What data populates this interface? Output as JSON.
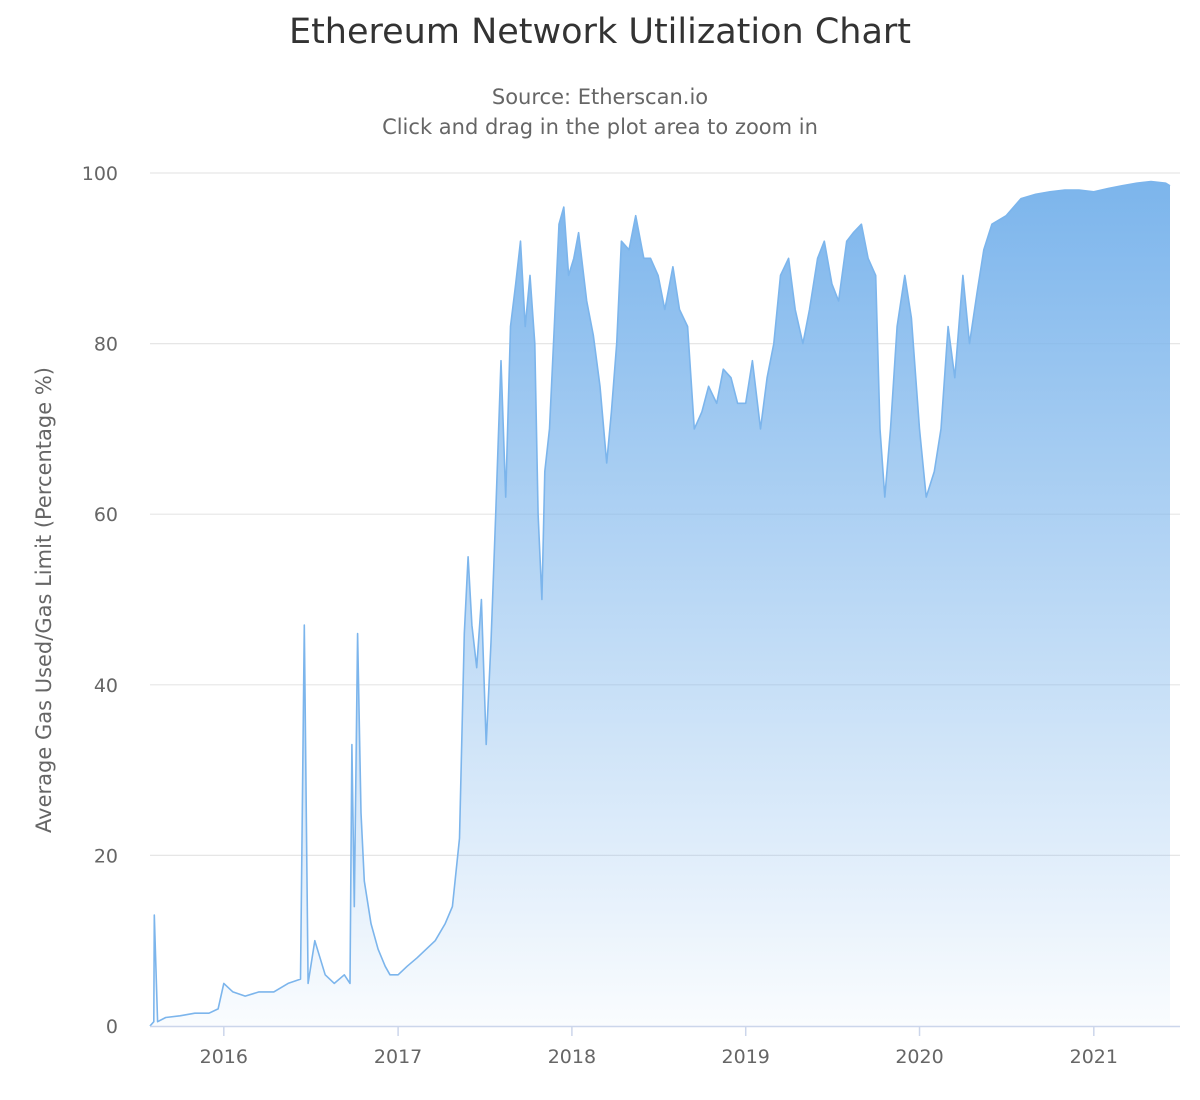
{
  "chart_data": {
    "type": "area",
    "title": "Ethereum Network Utilization Chart",
    "subtitle": "Source: Etherscan.io",
    "subtitle2": "Click and drag in the plot area to zoom in",
    "xlabel": "",
    "ylabel": "Average Gas Used/Gas Limit (Percentage %)",
    "ylim": [
      0,
      100
    ],
    "yticks": [
      0,
      20,
      40,
      60,
      80,
      100
    ],
    "xticks": [
      "2016",
      "2017",
      "2018",
      "2019",
      "2020",
      "2021"
    ],
    "xlim": [
      "2015-07-30",
      "2021-06-10"
    ],
    "grid": true,
    "legend": "none",
    "colors": {
      "line": "#7cb5ec",
      "grid": "#e6e6e6",
      "axis": "#ccd6eb"
    },
    "series": [
      {
        "x": [
          "2015-07-30",
          "2015-08-07",
          "2015-08-08",
          "2015-08-15",
          "2015-09-01",
          "2015-10-01",
          "2015-11-01",
          "2015-12-01",
          "2015-12-20",
          "2016-01-01",
          "2016-01-20",
          "2016-02-15",
          "2016-03-15",
          "2016-04-15",
          "2016-05-15",
          "2016-06-10",
          "2016-06-18",
          "2016-06-26",
          "2016-07-10",
          "2016-08-01",
          "2016-08-20",
          "2016-09-10",
          "2016-09-22",
          "2016-09-26",
          "2016-10-01",
          "2016-10-08",
          "2016-10-15",
          "2016-10-22",
          "2016-11-05",
          "2016-11-20",
          "2016-12-05",
          "2016-12-15",
          "2017-01-01",
          "2017-01-20",
          "2017-02-10",
          "2017-03-01",
          "2017-03-20",
          "2017-04-10",
          "2017-04-25",
          "2017-05-10",
          "2017-05-20",
          "2017-05-28",
          "2017-06-05",
          "2017-06-15",
          "2017-06-25",
          "2017-07-05",
          "2017-07-15",
          "2017-07-25",
          "2017-08-05",
          "2017-08-15",
          "2017-08-25",
          "2017-09-05",
          "2017-09-15",
          "2017-09-25",
          "2017-10-05",
          "2017-10-15",
          "2017-10-22",
          "2017-10-30",
          "2017-11-05",
          "2017-11-15",
          "2017-11-25",
          "2017-12-05",
          "2017-12-15",
          "2017-12-25",
          "2018-01-05",
          "2018-01-15",
          "2018-02-01",
          "2018-02-15",
          "2018-03-01",
          "2018-03-15",
          "2018-03-25",
          "2018-04-05",
          "2018-04-15",
          "2018-05-01",
          "2018-05-15",
          "2018-06-01",
          "2018-06-15",
          "2018-07-01",
          "2018-07-15",
          "2018-08-01",
          "2018-08-15",
          "2018-09-01",
          "2018-09-15",
          "2018-10-01",
          "2018-10-15",
          "2018-11-01",
          "2018-11-15",
          "2018-12-01",
          "2018-12-15",
          "2019-01-01",
          "2019-01-15",
          "2019-02-01",
          "2019-02-15",
          "2019-03-01",
          "2019-03-15",
          "2019-04-01",
          "2019-04-15",
          "2019-05-01",
          "2019-05-15",
          "2019-06-01",
          "2019-06-15",
          "2019-07-01",
          "2019-07-15",
          "2019-08-01",
          "2019-08-15",
          "2019-09-01",
          "2019-09-15",
          "2019-10-01",
          "2019-10-10",
          "2019-10-20",
          "2019-11-01",
          "2019-11-15",
          "2019-12-01",
          "2019-12-15",
          "2020-01-01",
          "2020-01-15",
          "2020-02-01",
          "2020-02-15",
          "2020-03-01",
          "2020-03-15",
          "2020-04-01",
          "2020-04-15",
          "2020-05-01",
          "2020-05-15",
          "2020-06-01",
          "2020-07-01",
          "2020-08-01",
          "2020-09-01",
          "2020-10-01",
          "2020-11-01",
          "2020-12-01",
          "2021-01-01",
          "2021-02-01",
          "2021-03-01",
          "2021-04-01",
          "2021-05-01",
          "2021-06-01",
          "2021-06-10"
        ],
        "y": [
          0,
          0.5,
          13,
          0.5,
          1,
          1.2,
          1.5,
          1.5,
          2,
          5,
          4,
          3.5,
          4,
          4,
          5,
          5.5,
          47,
          5,
          10,
          6,
          5,
          6,
          5,
          33,
          14,
          46,
          25,
          17,
          12,
          9,
          7,
          6,
          6,
          7,
          8,
          9,
          10,
          12,
          14,
          22,
          46,
          55,
          47,
          42,
          50,
          33,
          45,
          60,
          78,
          62,
          82,
          87,
          92,
          82,
          88,
          80,
          60,
          50,
          65,
          70,
          82,
          94,
          96,
          88,
          90,
          93,
          85,
          81,
          75,
          66,
          72,
          80,
          92,
          91,
          95,
          90,
          90,
          88,
          84,
          89,
          84,
          82,
          70,
          72,
          75,
          73,
          77,
          76,
          73,
          73,
          78,
          70,
          76,
          80,
          88,
          90,
          84,
          80,
          84,
          90,
          92,
          87,
          85,
          92,
          93,
          94,
          90,
          88,
          70,
          62,
          70,
          82,
          88,
          83,
          70,
          62,
          65,
          70,
          82,
          76,
          88,
          80,
          86,
          91,
          94,
          95,
          97,
          97.5,
          97.8,
          98,
          98,
          97.8,
          98.2,
          98.5,
          98.8,
          99,
          98.8,
          98.5
        ]
      }
    ]
  }
}
